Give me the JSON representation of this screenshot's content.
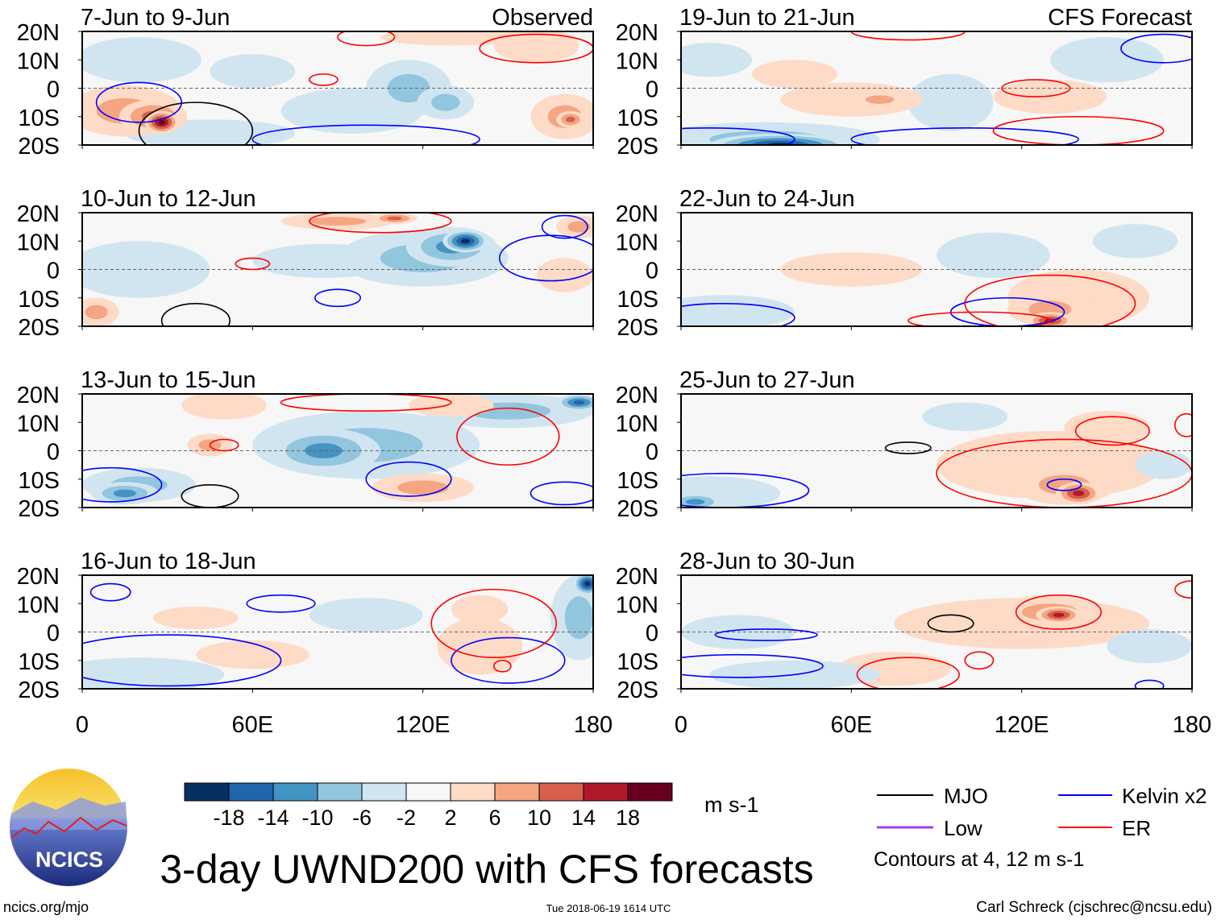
{
  "chart_data": {
    "type": "heatmap",
    "title": "3-day UWND200 with CFS forecasts",
    "lat_ticks": [
      "20N",
      "10N",
      "0",
      "10S",
      "20S"
    ],
    "lon_ticks": [
      "0",
      "60E",
      "120E",
      "180"
    ],
    "lat_values": [
      20,
      10,
      0,
      -10,
      -20
    ],
    "lon_values": [
      0,
      60,
      120,
      180
    ],
    "xlim": [
      0,
      180
    ],
    "ylim": [
      -20,
      20
    ],
    "columns": [
      {
        "label": "Observed"
      },
      {
        "label": "CFS Forecast"
      }
    ],
    "panels": [
      {
        "title": "7-Jun to 9-Jun",
        "col": 0,
        "row": 0,
        "anomalies": [
          [
            20,
            10,
            22,
            8,
            -4
          ],
          [
            60,
            6,
            15,
            6,
            -4
          ],
          [
            95,
            -8,
            25,
            8,
            -4
          ],
          [
            115,
            0,
            15,
            10,
            -8
          ],
          [
            128,
            -5,
            10,
            6,
            -10
          ],
          [
            45,
            -16,
            30,
            5,
            -6
          ],
          [
            15,
            -8,
            20,
            9,
            8
          ],
          [
            25,
            -10,
            12,
            6,
            14
          ],
          [
            28,
            -12,
            6,
            4,
            20
          ],
          [
            170,
            -10,
            12,
            8,
            10
          ],
          [
            172,
            -11,
            5,
            3,
            14
          ],
          [
            160,
            15,
            15,
            6,
            6
          ],
          [
            130,
            18,
            25,
            3,
            6
          ]
        ],
        "contours": [
          [
            "MJO",
            40,
            -15,
            20,
            10
          ],
          [
            "Kelvin",
            20,
            -5,
            15,
            7
          ],
          [
            "Kelvin",
            100,
            -18,
            40,
            5
          ],
          [
            "ER",
            85,
            3,
            5,
            2
          ],
          [
            "ER",
            100,
            18,
            10,
            3
          ],
          [
            "ER",
            160,
            14,
            20,
            5
          ]
        ]
      },
      {
        "title": "19-Jun to 21-Jun",
        "col": 1,
        "row": 0,
        "anomalies": [
          [
            30,
            -18,
            40,
            6,
            -10
          ],
          [
            35,
            -20,
            25,
            4,
            -20
          ],
          [
            95,
            -5,
            15,
            10,
            -6
          ],
          [
            150,
            10,
            20,
            8,
            -4
          ],
          [
            10,
            10,
            15,
            6,
            -4
          ],
          [
            60,
            -4,
            25,
            6,
            6
          ],
          [
            70,
            -4,
            10,
            3,
            10
          ],
          [
            130,
            -3,
            20,
            6,
            6
          ],
          [
            40,
            5,
            15,
            5,
            4
          ]
        ],
        "contours": [
          [
            "Kelvin",
            10,
            -18,
            30,
            4
          ],
          [
            "Kelvin",
            100,
            -18,
            40,
            4
          ],
          [
            "Kelvin",
            170,
            14,
            15,
            5
          ],
          [
            "ER",
            125,
            0,
            12,
            3
          ],
          [
            "ER",
            140,
            -15,
            30,
            5
          ],
          [
            "ER",
            80,
            20,
            20,
            3
          ]
        ]
      },
      {
        "title": "10-Jun to 12-Jun",
        "col": 0,
        "row": 1,
        "anomalies": [
          [
            20,
            0,
            25,
            10,
            -4
          ],
          [
            85,
            3,
            25,
            6,
            -6
          ],
          [
            120,
            4,
            30,
            10,
            -10
          ],
          [
            130,
            8,
            16,
            7,
            -14
          ],
          [
            135,
            10,
            8,
            4,
            -20
          ],
          [
            90,
            17,
            20,
            3,
            8
          ],
          [
            110,
            18,
            8,
            2,
            12
          ],
          [
            175,
            15,
            8,
            4,
            8
          ],
          [
            170,
            -2,
            10,
            6,
            6
          ],
          [
            5,
            -15,
            8,
            5,
            8
          ]
        ],
        "contours": [
          [
            "MJO",
            40,
            -18,
            12,
            6
          ],
          [
            "Kelvin",
            90,
            -10,
            8,
            3
          ],
          [
            "Kelvin",
            165,
            4,
            18,
            8
          ],
          [
            "Kelvin",
            170,
            15,
            8,
            4
          ],
          [
            "ER",
            60,
            2,
            6,
            2
          ],
          [
            "ER",
            105,
            17,
            25,
            4
          ]
        ]
      },
      {
        "title": "22-Jun to 24-Jun",
        "col": 1,
        "row": 1,
        "anomalies": [
          [
            15,
            -15,
            25,
            6,
            -6
          ],
          [
            110,
            5,
            20,
            8,
            -4
          ],
          [
            140,
            -10,
            25,
            10,
            6
          ],
          [
            130,
            -14,
            15,
            6,
            10
          ],
          [
            130,
            -18,
            8,
            3,
            16
          ],
          [
            60,
            0,
            25,
            6,
            4
          ],
          [
            160,
            10,
            15,
            6,
            -4
          ]
        ],
        "contours": [
          [
            "Kelvin",
            15,
            -17,
            25,
            5
          ],
          [
            "Kelvin",
            115,
            -15,
            20,
            5
          ],
          [
            "ER",
            130,
            -12,
            30,
            10
          ],
          [
            "ER",
            105,
            -18,
            25,
            3
          ]
        ]
      },
      {
        "title": "13-Jun to 15-Jun",
        "col": 0,
        "row": 2,
        "anomalies": [
          [
            100,
            2,
            40,
            12,
            -8
          ],
          [
            85,
            0,
            20,
            8,
            -12
          ],
          [
            150,
            14,
            30,
            6,
            -8
          ],
          [
            175,
            17,
            8,
            3,
            -18
          ],
          [
            20,
            -12,
            20,
            6,
            -10
          ],
          [
            15,
            -15,
            12,
            4,
            -14
          ],
          [
            120,
            -13,
            18,
            5,
            10
          ],
          [
            50,
            16,
            15,
            5,
            6
          ],
          [
            45,
            2,
            8,
            4,
            8
          ],
          [
            130,
            16,
            15,
            4,
            6
          ]
        ],
        "contours": [
          [
            "MJO",
            45,
            -16,
            10,
            4
          ],
          [
            "Kelvin",
            10,
            -12,
            18,
            6
          ],
          [
            "Kelvin",
            115,
            -10,
            15,
            6
          ],
          [
            "Kelvin",
            170,
            -15,
            12,
            4
          ],
          [
            "ER",
            150,
            5,
            18,
            10
          ],
          [
            "ER",
            50,
            2,
            5,
            2
          ],
          [
            "ER",
            100,
            17,
            30,
            3
          ]
        ]
      },
      {
        "title": "25-Jun to 27-Jun",
        "col": 1,
        "row": 2,
        "anomalies": [
          [
            130,
            -5,
            40,
            12,
            6
          ],
          [
            135,
            -12,
            18,
            7,
            10
          ],
          [
            140,
            -15,
            8,
            4,
            16
          ],
          [
            150,
            8,
            15,
            6,
            6
          ],
          [
            10,
            -15,
            25,
            6,
            -6
          ],
          [
            5,
            -18,
            10,
            3,
            -12
          ],
          [
            100,
            12,
            15,
            5,
            -4
          ],
          [
            170,
            -5,
            10,
            5,
            -4
          ]
        ],
        "contours": [
          [
            "MJO",
            80,
            1,
            8,
            2
          ],
          [
            "Kelvin",
            15,
            -14,
            30,
            6
          ],
          [
            "Kelvin",
            135,
            -12,
            6,
            2
          ],
          [
            "ER",
            135,
            -8,
            45,
            12
          ],
          [
            "ER",
            152,
            7,
            13,
            5
          ],
          [
            "ER",
            178,
            9,
            4,
            4
          ]
        ]
      },
      {
        "title": "16-Jun to 18-Jun",
        "col": 0,
        "row": 3,
        "anomalies": [
          [
            175,
            5,
            10,
            15,
            -8
          ],
          [
            178,
            17,
            5,
            4,
            -20
          ],
          [
            20,
            -15,
            30,
            6,
            -6
          ],
          [
            60,
            -8,
            20,
            5,
            4
          ],
          [
            140,
            -5,
            15,
            10,
            6
          ],
          [
            140,
            8,
            10,
            5,
            6
          ],
          [
            40,
            5,
            15,
            4,
            4
          ],
          [
            100,
            6,
            20,
            6,
            -4
          ]
        ],
        "contours": [
          [
            "Kelvin",
            10,
            14,
            7,
            3
          ],
          [
            "Kelvin",
            70,
            10,
            12,
            3
          ],
          [
            "Kelvin",
            30,
            -10,
            40,
            9
          ],
          [
            "Kelvin",
            150,
            -10,
            20,
            8
          ],
          [
            "ER",
            145,
            3,
            22,
            12
          ],
          [
            "ER",
            148,
            -12,
            3,
            2
          ]
        ]
      },
      {
        "title": "28-Jun to 30-Jun",
        "col": 1,
        "row": 3,
        "anomalies": [
          [
            120,
            3,
            45,
            9,
            6
          ],
          [
            130,
            7,
            20,
            6,
            10
          ],
          [
            133,
            6,
            8,
            3,
            16
          ],
          [
            75,
            -13,
            20,
            6,
            6
          ],
          [
            20,
            0,
            20,
            6,
            -4
          ],
          [
            40,
            -15,
            30,
            5,
            -4
          ],
          [
            165,
            -5,
            15,
            6,
            -2
          ]
        ],
        "contours": [
          [
            "MJO",
            95,
            3,
            8,
            3
          ],
          [
            "Kelvin",
            20,
            -12,
            30,
            4
          ],
          [
            "Kelvin",
            30,
            -1,
            18,
            2
          ],
          [
            "Kelvin",
            165,
            -19,
            5,
            2
          ],
          [
            "ER",
            80,
            -15,
            18,
            6
          ],
          [
            "ER",
            133,
            7,
            15,
            6
          ],
          [
            "ER",
            105,
            -10,
            5,
            3
          ],
          [
            "ER",
            180,
            15,
            6,
            3
          ]
        ]
      }
    ]
  },
  "colorbar": {
    "labels": [
      "-18",
      "-14",
      "-10",
      "-6",
      "-2",
      "2",
      "6",
      "10",
      "14",
      "18"
    ],
    "colors": [
      "#053061",
      "#2166ac",
      "#4393c3",
      "#92c5de",
      "#d1e5f0",
      "#f7f7f7",
      "#fddbc7",
      "#f4a582",
      "#d6604d",
      "#b2182b",
      "#67001f"
    ],
    "units": "m s-1"
  },
  "legend": {
    "items": [
      {
        "label": "MJO",
        "color": "#000000"
      },
      {
        "label": "Kelvin x2",
        "color": "#0000ff"
      },
      {
        "label": "Low",
        "color": "#a040e0"
      },
      {
        "label": "ER",
        "color": "#ff0000"
      }
    ],
    "note": "Contours at 4, 12 m s-1"
  },
  "footer": {
    "title": "3-day UWND200 with CFS forecasts",
    "url": "ncics.org/mjo",
    "timestamp": "Tue 2018-06-19 1614 UTC",
    "author": "Carl Schreck (cjschrec@ncsu.edu)",
    "logo_text": "NCICS"
  }
}
